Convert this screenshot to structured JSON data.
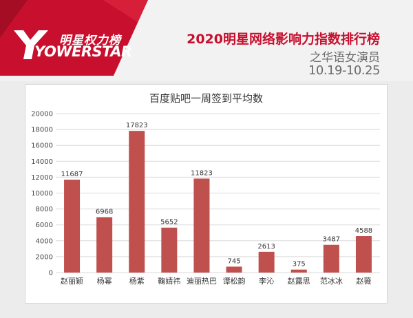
{
  "header": {
    "logo_cn": "明星权力榜",
    "logo_en": "YOWERSTAR",
    "title": "2020明星网络影响力指数排行榜",
    "subtitle": "之华语女演员",
    "date_range": "10.19-10.25"
  },
  "colors": {
    "brand_red": "#c8102e",
    "bar": "#c0504d",
    "grid": "#d9d9d9"
  },
  "chart_data": {
    "type": "bar",
    "title": "百度贴吧一周签到平均数",
    "categories": [
      "赵丽颖",
      "杨幂",
      "杨紫",
      "鞠婧祎",
      "迪丽热巴",
      "谭松韵",
      "李沁",
      "赵露思",
      "范冰冰",
      "赵薇"
    ],
    "values": [
      11687,
      6968,
      17823,
      5652,
      11823,
      745,
      2613,
      375,
      3487,
      4588
    ],
    "ylim": [
      0,
      20000
    ],
    "yticks": [
      0,
      2000,
      4000,
      6000,
      8000,
      10000,
      12000,
      14000,
      16000,
      18000,
      20000
    ],
    "grid": true,
    "data_labels": true
  }
}
